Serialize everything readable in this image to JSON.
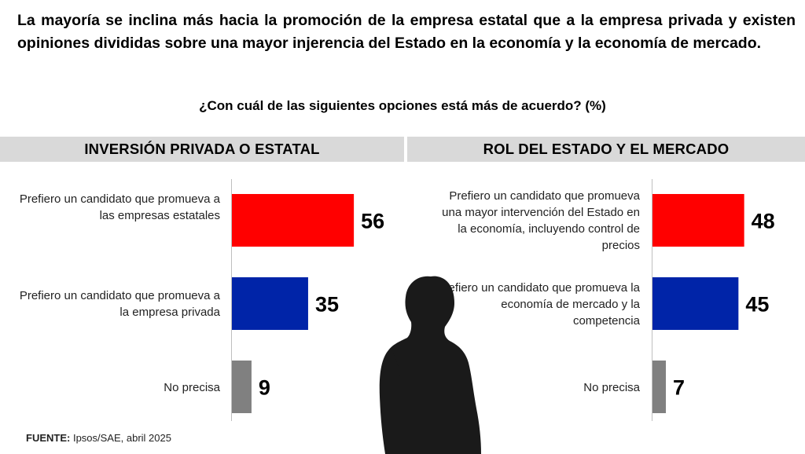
{
  "headline": "La mayoría se inclina más hacia la promoción de la empresa estatal que a la empresa privada y existen opiniones divididas sobre una mayor injerencia del Estado en la economía y la economía de mercado.",
  "question": "¿Con cuál de las siguientes opciones está más de acuerdo? (%)",
  "source": {
    "label": "FUENTE:",
    "text": " Ipsos/SAE, abril 2025"
  },
  "colors": {
    "red": "#ff0000",
    "blue": "#0024a8",
    "gray": "#808080",
    "header_bg": "#d9d9d9"
  },
  "chart_data": [
    {
      "type": "bar",
      "orientation": "horizontal",
      "title": "INVERSIÓN PRIVADA O ESTATAL",
      "categories": [
        "Prefiero un candidato que promueva a las empresas estatales",
        "Prefiero un candidato que promueva a la empresa privada",
        "No precisa"
      ],
      "values": [
        56,
        35,
        9
      ],
      "colors": [
        "#ff0000",
        "#0024a8",
        "#808080"
      ],
      "unit": "%"
    },
    {
      "type": "bar",
      "orientation": "horizontal",
      "title": "ROL DEL ESTADO Y EL MERCADO",
      "categories": [
        "Prefiero un candidato que promueva una mayor intervención del Estado en la economía, incluyendo control de precios",
        "Prefiero un candidato que promueva la economía de mercado y la competencia",
        "No precisa"
      ],
      "values": [
        48,
        45,
        7
      ],
      "colors": [
        "#ff0000",
        "#0024a8",
        "#808080"
      ],
      "unit": "%"
    }
  ]
}
